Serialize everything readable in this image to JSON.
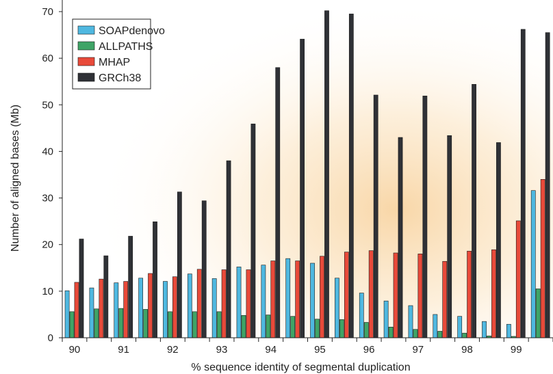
{
  "chart_data": {
    "type": "bar",
    "title": "",
    "xlabel": "% sequence identity of segmental duplication",
    "ylabel": "Number of aligned bases (Mb)",
    "ylim": [
      0,
      70
    ],
    "yticks": [
      0,
      10,
      20,
      30,
      40,
      50,
      60,
      70
    ],
    "categories": [
      "90",
      "90.5",
      "91",
      "91.5",
      "92",
      "92.5",
      "93",
      "93.5",
      "94",
      "94.5",
      "95",
      "95.5",
      "96",
      "96.5",
      "97",
      "97.5",
      "98",
      "98.5",
      "99",
      "99.5"
    ],
    "tick_labels": [
      "90",
      "",
      "91",
      "",
      "92",
      "",
      "93",
      "",
      "94",
      "",
      "95",
      "",
      "96",
      "",
      "97",
      "",
      "98",
      "",
      "99",
      ""
    ],
    "legend_position": "top-left",
    "grid": false,
    "series": [
      {
        "name": "SOAPdenovo",
        "color": "#4fb8e0",
        "values": [
          10.1,
          10.7,
          11.8,
          12.8,
          12.1,
          13.7,
          12.7,
          15.2,
          15.6,
          17.0,
          16.0,
          12.8,
          9.6,
          7.9,
          6.9,
          5.0,
          4.6,
          3.5,
          2.9,
          31.6
        ]
      },
      {
        "name": "ALLPATHS",
        "color": "#3fa466",
        "values": [
          5.6,
          6.2,
          6.3,
          6.1,
          5.6,
          5.6,
          5.6,
          4.8,
          4.9,
          4.6,
          4.0,
          3.9,
          3.3,
          2.3,
          1.8,
          1.4,
          1.0,
          0.4,
          0.3,
          10.5
        ]
      },
      {
        "name": "MHAP",
        "color": "#e84a3a",
        "values": [
          11.9,
          12.6,
          12.1,
          13.8,
          13.1,
          14.7,
          14.6,
          14.6,
          16.5,
          16.5,
          17.5,
          18.4,
          18.7,
          18.2,
          18.0,
          16.4,
          18.6,
          18.9,
          25.1,
          34.0
        ]
      },
      {
        "name": "GRCh38",
        "color": "#2f3136",
        "values": [
          21.2,
          17.6,
          21.8,
          24.9,
          31.3,
          29.4,
          38.0,
          45.9,
          58.0,
          64.1,
          70.2,
          69.5,
          52.1,
          43.0,
          51.9,
          43.4,
          54.4,
          41.9,
          66.2,
          65.5
        ]
      }
    ]
  }
}
